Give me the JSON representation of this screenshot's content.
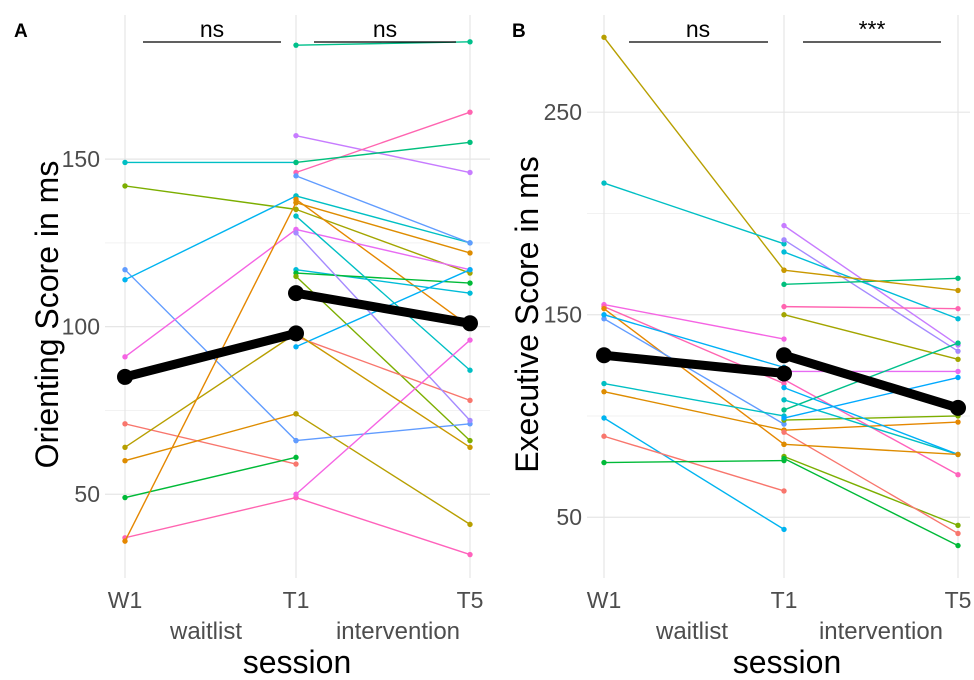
{
  "chart_data": [
    {
      "panel": "A",
      "type": "line",
      "xlabel": "session",
      "ylabel": "Orienting Score in ms",
      "categories": [
        "W1",
        "T1",
        "T5"
      ],
      "group_labels": [
        "waitlist",
        "intervention"
      ],
      "yticks": [
        50,
        100,
        150
      ],
      "ylim": [
        25,
        193
      ],
      "grid": true,
      "significance": [
        {
          "from": "W1",
          "to": "T1",
          "label": "ns"
        },
        {
          "from": "T1",
          "to": "T5",
          "label": "ns"
        }
      ],
      "mean": {
        "waitlist": [
          85,
          98
        ],
        "intervention": [
          110,
          101
        ]
      },
      "waitlist_lines": [
        {
          "color": "#00BFC4",
          "values": [
            149,
            149
          ]
        },
        {
          "color": "#7CAE00",
          "values": [
            142,
            135
          ]
        },
        {
          "color": "#619CFF",
          "values": [
            117,
            66
          ]
        },
        {
          "color": "#00B4F0",
          "values": [
            114,
            139
          ]
        },
        {
          "color": "#F564E3",
          "values": [
            91,
            129
          ]
        },
        {
          "color": "#F8766D",
          "values": [
            71,
            59
          ]
        },
        {
          "color": "#B79F00",
          "values": [
            64,
            98
          ]
        },
        {
          "color": "#DE8C00",
          "values": [
            60,
            74
          ]
        },
        {
          "color": "#00BA38",
          "values": [
            49,
            61
          ]
        },
        {
          "color": "#FF64B0",
          "values": [
            37,
            49
          ]
        },
        {
          "color": "#E58700",
          "values": [
            36,
            137
          ]
        }
      ],
      "intervention_lines": [
        {
          "color": "#00C08B",
          "values": [
            184,
            185
          ]
        },
        {
          "color": "#C77CFF",
          "values": [
            157,
            146
          ]
        },
        {
          "color": "#FF64B0",
          "values": [
            146,
            164
          ]
        },
        {
          "color": "#00BF7D",
          "values": [
            149,
            155
          ]
        },
        {
          "color": "#00BFC4",
          "values": [
            139,
            125
          ]
        },
        {
          "color": "#A3A500",
          "values": [
            135,
            116
          ]
        },
        {
          "color": "#E58700",
          "values": [
            138,
            100
          ]
        },
        {
          "color": "#DE8C00",
          "values": [
            137,
            122
          ]
        },
        {
          "color": "#619CFF",
          "values": [
            145,
            125
          ]
        },
        {
          "color": "#E76BF3",
          "values": [
            129,
            117
          ]
        },
        {
          "color": "#00BCD8",
          "values": [
            117,
            110
          ]
        },
        {
          "color": "#00BA38",
          "values": [
            116,
            113
          ]
        },
        {
          "color": "#7CAE00",
          "values": [
            115,
            66
          ]
        },
        {
          "color": "#00B0F6",
          "values": [
            94,
            117
          ]
        },
        {
          "color": "#F8766D",
          "values": [
            97,
            78
          ]
        },
        {
          "color": "#B79F00",
          "values": [
            74,
            41
          ]
        },
        {
          "color": "#619CFF",
          "values": [
            66,
            71
          ]
        },
        {
          "color": "#FF62BC",
          "values": [
            49,
            32
          ]
        },
        {
          "color": "#00BFC4",
          "values": [
            133,
            87
          ]
        },
        {
          "color": "#A58AFF",
          "values": [
            128,
            72
          ]
        },
        {
          "color": "#F564E3",
          "values": [
            50,
            96
          ]
        },
        {
          "color": "#C99800",
          "values": [
            98,
            64
          ]
        }
      ]
    },
    {
      "panel": "B",
      "type": "line",
      "xlabel": "session",
      "ylabel": "Executive Score in ms",
      "categories": [
        "W1",
        "T1",
        "T5"
      ],
      "group_labels": [
        "waitlist",
        "intervention"
      ],
      "yticks": [
        50,
        150,
        250
      ],
      "ylim": [
        20,
        298
      ],
      "grid": true,
      "significance": [
        {
          "from": "W1",
          "to": "T1",
          "label": "ns"
        },
        {
          "from": "T1",
          "to": "T5",
          "label": "***"
        }
      ],
      "mean": {
        "waitlist": [
          130,
          121
        ],
        "intervention": [
          130,
          104
        ]
      },
      "waitlist_lines": [
        {
          "color": "#B79F00",
          "values": [
            287,
            172
          ]
        },
        {
          "color": "#00BFC4",
          "values": [
            215,
            185
          ]
        },
        {
          "color": "#F564E3",
          "values": [
            155,
            138
          ]
        },
        {
          "color": "#FF64B0",
          "values": [
            154,
            116
          ]
        },
        {
          "color": "#E58700",
          "values": [
            153,
            86
          ]
        },
        {
          "color": "#619CFF",
          "values": [
            148,
            96
          ]
        },
        {
          "color": "#00B0F6",
          "values": [
            150,
            124
          ]
        },
        {
          "color": "#00BFC4",
          "values": [
            116,
            100
          ]
        },
        {
          "color": "#DE8C00",
          "values": [
            112,
            93
          ]
        },
        {
          "color": "#00B4F0",
          "values": [
            99,
            44
          ]
        },
        {
          "color": "#F8766D",
          "values": [
            90,
            63
          ]
        },
        {
          "color": "#00BA38",
          "values": [
            77,
            78
          ]
        }
      ],
      "intervention_lines": [
        {
          "color": "#C77CFF",
          "values": [
            194,
            135
          ]
        },
        {
          "color": "#A58AFF",
          "values": [
            187,
            132
          ]
        },
        {
          "color": "#00BCD8",
          "values": [
            181,
            148
          ]
        },
        {
          "color": "#00BF7D",
          "values": [
            165,
            168
          ]
        },
        {
          "color": "#C99800",
          "values": [
            172,
            162
          ]
        },
        {
          "color": "#FF64B0",
          "values": [
            154,
            153
          ]
        },
        {
          "color": "#A3A500",
          "values": [
            150,
            128
          ]
        },
        {
          "color": "#E76BF3",
          "values": [
            122,
            122
          ]
        },
        {
          "color": "#FF62BC",
          "values": [
            118,
            71
          ]
        },
        {
          "color": "#00C08B",
          "values": [
            103,
            136
          ]
        },
        {
          "color": "#7CAE00",
          "values": [
            98,
            100
          ]
        },
        {
          "color": "#E58700",
          "values": [
            93,
            97
          ]
        },
        {
          "color": "#00BFC4",
          "values": [
            108,
            81
          ]
        },
        {
          "color": "#00A9FF",
          "values": [
            99,
            119
          ]
        },
        {
          "color": "#7CAE00",
          "values": [
            80,
            46
          ]
        },
        {
          "color": "#00BA38",
          "values": [
            79,
            36
          ]
        },
        {
          "color": "#F8766D",
          "values": [
            92,
            42
          ]
        },
        {
          "color": "#00B0F6",
          "values": [
            114,
            81
          ]
        },
        {
          "color": "#DE8C00",
          "values": [
            86,
            81
          ]
        }
      ]
    }
  ]
}
